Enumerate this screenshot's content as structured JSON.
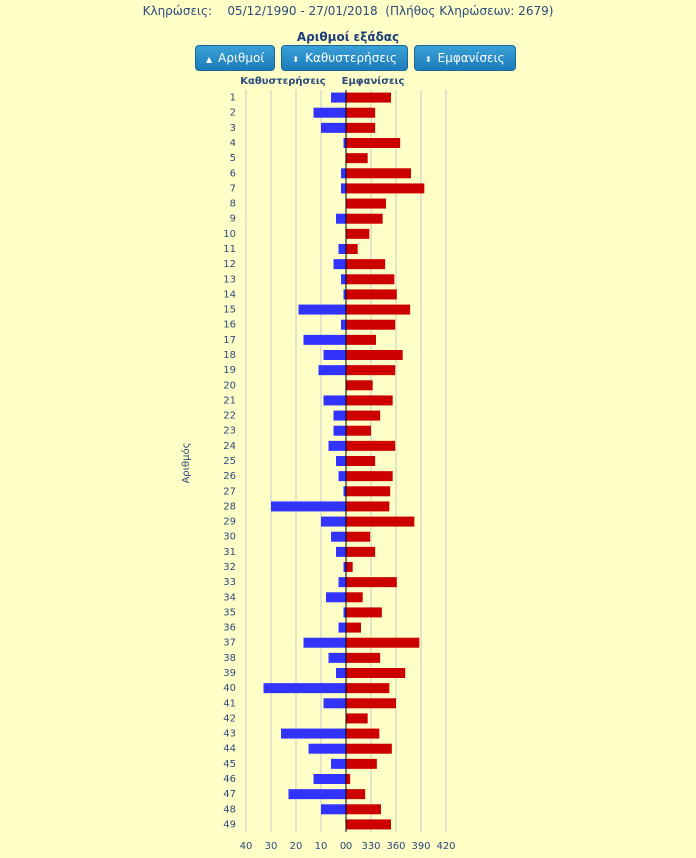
{
  "header": {
    "label": "Κληρώσεις:",
    "period": "05/12/1990 - 27/01/2018",
    "count": "(Πλήθος Κληρώσεων: 2679)"
  },
  "buttons": [
    "Αριθμοί",
    "Καθυστερήσεις",
    "Εμφανίσεις"
  ],
  "chart_data": {
    "type": "bar",
    "title": "Αριθμοί εξάδας",
    "y_label": "Αριθμός",
    "categories": [
      "1",
      "2",
      "3",
      "4",
      "5",
      "6",
      "7",
      "8",
      "9",
      "10",
      "11",
      "12",
      "13",
      "14",
      "15",
      "16",
      "17",
      "18",
      "19",
      "20",
      "21",
      "22",
      "23",
      "24",
      "25",
      "26",
      "27",
      "28",
      "29",
      "30",
      "31",
      "32",
      "33",
      "34",
      "35",
      "36",
      "37",
      "38",
      "39",
      "40",
      "41",
      "42",
      "43",
      "44",
      "45",
      "46",
      "47",
      "48",
      "49"
    ],
    "grid": true,
    "series": [
      {
        "name": "Καθυστερήσεις",
        "color": "#3333ff",
        "side": "left",
        "xlim": [
          0,
          40
        ],
        "xticks": [
          0,
          10,
          20,
          30,
          40
        ],
        "values": [
          6,
          13,
          10,
          1,
          0,
          2,
          2,
          0,
          4,
          0,
          3,
          5,
          2,
          1,
          19,
          2,
          17,
          9,
          11,
          0,
          9,
          5,
          5,
          7,
          4,
          3,
          1,
          30,
          10,
          6,
          4,
          1,
          3,
          8,
          1,
          3,
          17,
          7,
          4,
          33,
          9,
          0,
          26,
          15,
          6,
          13,
          23,
          10,
          0
        ]
      },
      {
        "name": "Εμφανίσεις",
        "color": "#cc0000",
        "side": "right",
        "xlim": [
          300,
          420
        ],
        "xticks": [
          {
            "value": 300,
            "label": "0"
          },
          330,
          360,
          390,
          420
        ],
        "values": [
          354,
          335,
          335,
          365,
          326,
          378,
          394,
          348,
          344,
          328,
          314,
          347,
          358,
          361,
          377,
          359,
          336,
          368,
          359,
          332,
          356,
          341,
          330,
          359,
          335,
          356,
          353,
          352,
          382,
          329,
          335,
          308,
          361,
          320,
          343,
          318,
          388,
          341,
          371,
          352,
          360,
          326,
          340,
          355,
          337,
          305,
          323,
          342,
          354
        ]
      }
    ]
  }
}
